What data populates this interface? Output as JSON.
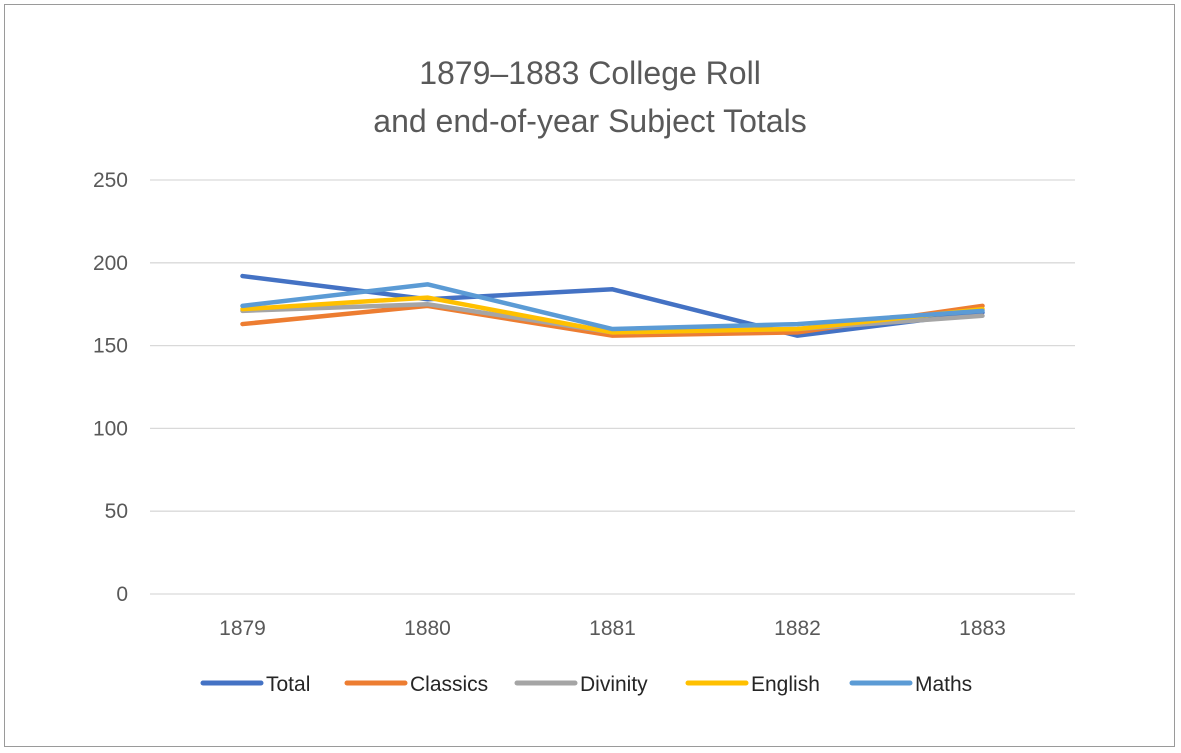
{
  "chart_data": {
    "type": "line",
    "title_lines": [
      "1879–1883 College Roll",
      "and end-of-year Subject Totals"
    ],
    "categories": [
      "1879",
      "1880",
      "1881",
      "1882",
      "1883"
    ],
    "ylim": [
      0,
      250
    ],
    "yticks": [
      "0",
      "50",
      "100",
      "150",
      "200",
      "250"
    ],
    "grid": true,
    "legend_position": "bottom",
    "series": [
      {
        "name": "Total",
        "color": "#4472C4",
        "values": [
          192,
          178,
          184,
          156,
          170
        ]
      },
      {
        "name": "Classics",
        "color": "#ED7D31",
        "values": [
          163,
          174,
          156,
          158,
          174
        ]
      },
      {
        "name": "Divinity",
        "color": "#A5A5A5",
        "values": [
          171,
          175,
          158,
          160,
          168
        ]
      },
      {
        "name": "English",
        "color": "#FFC000",
        "values": [
          172,
          179,
          158,
          160,
          172
        ]
      },
      {
        "name": "Maths",
        "color": "#5B9BD5",
        "values": [
          174,
          187,
          160,
          163,
          171
        ]
      }
    ]
  }
}
